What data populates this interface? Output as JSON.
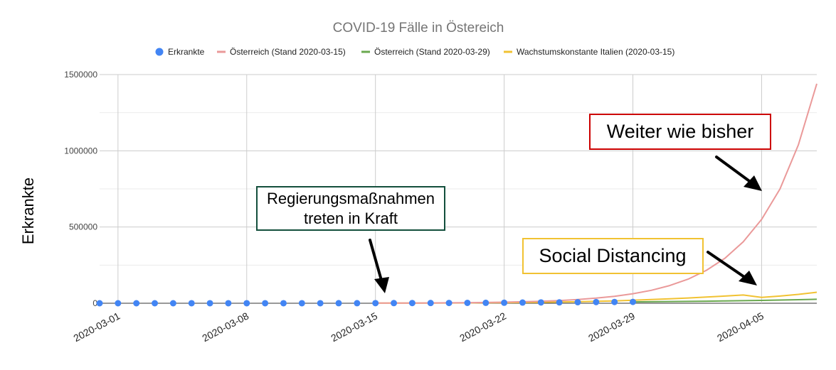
{
  "chart_data": {
    "type": "line",
    "title": "COVID-19 Fälle in Östereich",
    "ylabel": "Erkrankte",
    "xlabel": "",
    "x_start": "2020-02-29",
    "x_end": "2020-04-08",
    "ylim": [
      0,
      1500000
    ],
    "yticks": [
      0,
      500000,
      1000000,
      1500000
    ],
    "ytick_labels": [
      "0",
      "500000",
      "1000000",
      "1500000"
    ],
    "xticks": [
      "2020-03-01",
      "2020-03-08",
      "2020-03-15",
      "2020-03-22",
      "2020-03-29",
      "2020-04-05"
    ],
    "grid": true,
    "legend_position": "top",
    "series": [
      {
        "name": "Erkrankte",
        "kind": "scatter",
        "color": "#4285f4",
        "x": [
          "2020-02-29",
          "2020-03-01",
          "2020-03-02",
          "2020-03-03",
          "2020-03-04",
          "2020-03-05",
          "2020-03-06",
          "2020-03-07",
          "2020-03-08",
          "2020-03-09",
          "2020-03-10",
          "2020-03-11",
          "2020-03-12",
          "2020-03-13",
          "2020-03-14",
          "2020-03-15",
          "2020-03-16",
          "2020-03-17",
          "2020-03-18",
          "2020-03-19",
          "2020-03-20",
          "2020-03-21",
          "2020-03-22",
          "2020-03-23",
          "2020-03-24",
          "2020-03-25",
          "2020-03-26",
          "2020-03-27",
          "2020-03-28",
          "2020-03-29"
        ],
        "y": [
          9,
          10,
          14,
          18,
          24,
          29,
          41,
          55,
          79,
          104,
          131,
          182,
          246,
          361,
          504,
          800,
          1018,
          1332,
          1646,
          2013,
          2388,
          2814,
          3244,
          4486,
          5282,
          5588,
          6909,
          7657,
          8271,
          8788
        ]
      },
      {
        "name": "Österreich (Stand 2020-03-15)",
        "kind": "line",
        "color": "#ea9999",
        "x": [
          "2020-03-15",
          "2020-03-16",
          "2020-03-17",
          "2020-03-18",
          "2020-03-19",
          "2020-03-20",
          "2020-03-21",
          "2020-03-22",
          "2020-03-23",
          "2020-03-24",
          "2020-03-25",
          "2020-03-26",
          "2020-03-27",
          "2020-03-28",
          "2020-03-29",
          "2020-03-30",
          "2020-03-31",
          "2020-04-01",
          "2020-04-02",
          "2020-04-03",
          "2020-04-04",
          "2020-04-05",
          "2020-04-06",
          "2020-04-07",
          "2020-04-08"
        ],
        "y": [
          800,
          1090,
          1490,
          2030,
          2770,
          3790,
          5170,
          7060,
          9630,
          13100,
          17900,
          24500,
          33400,
          45600,
          62300,
          85000,
          116000,
          158000,
          216000,
          295000,
          403000,
          550000,
          750000,
          1040000,
          1440000
        ]
      },
      {
        "name": "Österreich (Stand 2020-03-29)",
        "kind": "line",
        "color": "#6aa84f",
        "x": [
          "2020-03-29",
          "2020-03-30",
          "2020-03-31",
          "2020-04-01",
          "2020-04-02",
          "2020-04-03",
          "2020-04-04",
          "2020-04-05",
          "2020-04-06",
          "2020-04-07",
          "2020-04-08"
        ],
        "y": [
          8800,
          9900,
          11000,
          12300,
          13700,
          15200,
          16900,
          18800,
          20900,
          23300,
          26000
        ]
      },
      {
        "name": "Wachstumskonstante Italien (2020-03-15)",
        "kind": "line",
        "color": "#f1c232",
        "x": [
          "2020-03-15",
          "2020-03-16",
          "2020-03-17",
          "2020-03-18",
          "2020-03-19",
          "2020-03-20",
          "2020-03-21",
          "2020-03-22",
          "2020-03-23",
          "2020-03-24",
          "2020-03-25",
          "2020-03-26",
          "2020-03-27",
          "2020-03-28",
          "2020-03-29",
          "2020-03-30",
          "2020-03-31",
          "2020-04-01",
          "2020-04-02",
          "2020-04-03",
          "2020-04-04",
          "2020-04-05",
          "2020-04-06",
          "2020-04-07",
          "2020-04-08"
        ],
        "y": [
          800,
          1000,
          1260,
          1580,
          1990,
          2500,
          3150,
          3960,
          4980,
          6260,
          7880,
          9900,
          12400,
          15600,
          19600,
          24100,
          29200,
          34700,
          40600,
          47000,
          54000,
          38000,
          47000,
          58000,
          72000
        ]
      }
    ],
    "annotations": [
      {
        "text": "Weiter wie bisher",
        "border_color": "#cc0000"
      },
      {
        "text": "Social Distancing",
        "border_color": "#f1c232"
      },
      {
        "lines": [
          "Regierungsmaßnahmen",
          "treten in Kraft"
        ],
        "border_color": "#134f3c"
      }
    ]
  }
}
